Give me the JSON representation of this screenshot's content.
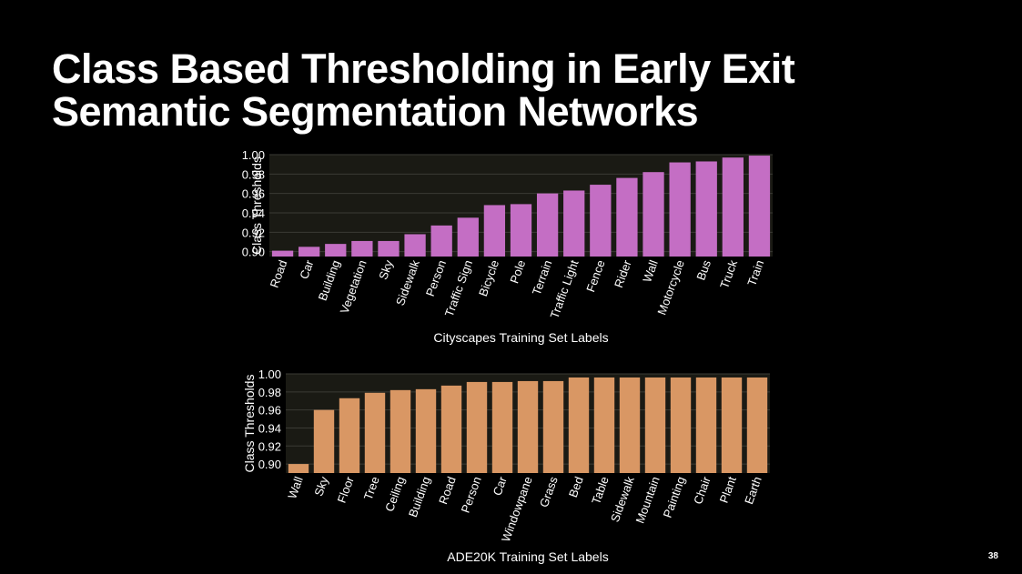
{
  "slide": {
    "title_line1": "Class Based Thresholding in Early Exit",
    "title_line2": "Semantic Segmentation Networks",
    "page_number": "38"
  },
  "colors": {
    "background": "#000000",
    "plot_background": "#1a1a14",
    "cityscapes_bar": "#c46ec4",
    "ade20k_bar": "#d99764"
  },
  "chart_data": [
    {
      "type": "bar",
      "xlabel": "Cityscapes Training Set Labels",
      "ylabel": "Class Thresholds",
      "ylim": [
        0.895,
        1.0
      ],
      "yticks": [
        "0.90",
        "0.92",
        "0.94",
        "0.96",
        "0.98",
        "1.00"
      ],
      "grid": true,
      "categories": [
        "Road",
        "Car",
        "Building",
        "Vegetation",
        "Sky",
        "Sidewalk",
        "Person",
        "Traffic Sign",
        "Bicycle",
        "Pole",
        "Terrain",
        "Traffic Light",
        "Fence",
        "Rider",
        "Wall",
        "Motorcycle",
        "Bus",
        "Truck",
        "Train"
      ],
      "values": [
        0.901,
        0.905,
        0.908,
        0.911,
        0.911,
        0.918,
        0.927,
        0.935,
        0.948,
        0.949,
        0.96,
        0.963,
        0.969,
        0.976,
        0.982,
        0.992,
        0.993,
        0.997,
        0.999
      ]
    },
    {
      "type": "bar",
      "xlabel": "ADE20K Training Set Labels",
      "ylabel": "Class Thresholds",
      "ylim": [
        0.89,
        1.0
      ],
      "yticks": [
        "0.90",
        "0.92",
        "0.94",
        "0.96",
        "0.98",
        "1.00"
      ],
      "grid": true,
      "categories": [
        "Wall",
        "Sky",
        "Floor",
        "Tree",
        "Ceiling",
        "Building",
        "Road",
        "Person",
        "Car",
        "Windowpane",
        "Grass",
        "Bed",
        "Table",
        "Sidewalk",
        "Mountain",
        "Painting",
        "Chair",
        "Plant",
        "Earth"
      ],
      "values": [
        0.9,
        0.96,
        0.973,
        0.979,
        0.982,
        0.983,
        0.987,
        0.991,
        0.991,
        0.992,
        0.992,
        0.996,
        0.996,
        0.996,
        0.996,
        0.996,
        0.996,
        0.996,
        0.996
      ]
    }
  ]
}
